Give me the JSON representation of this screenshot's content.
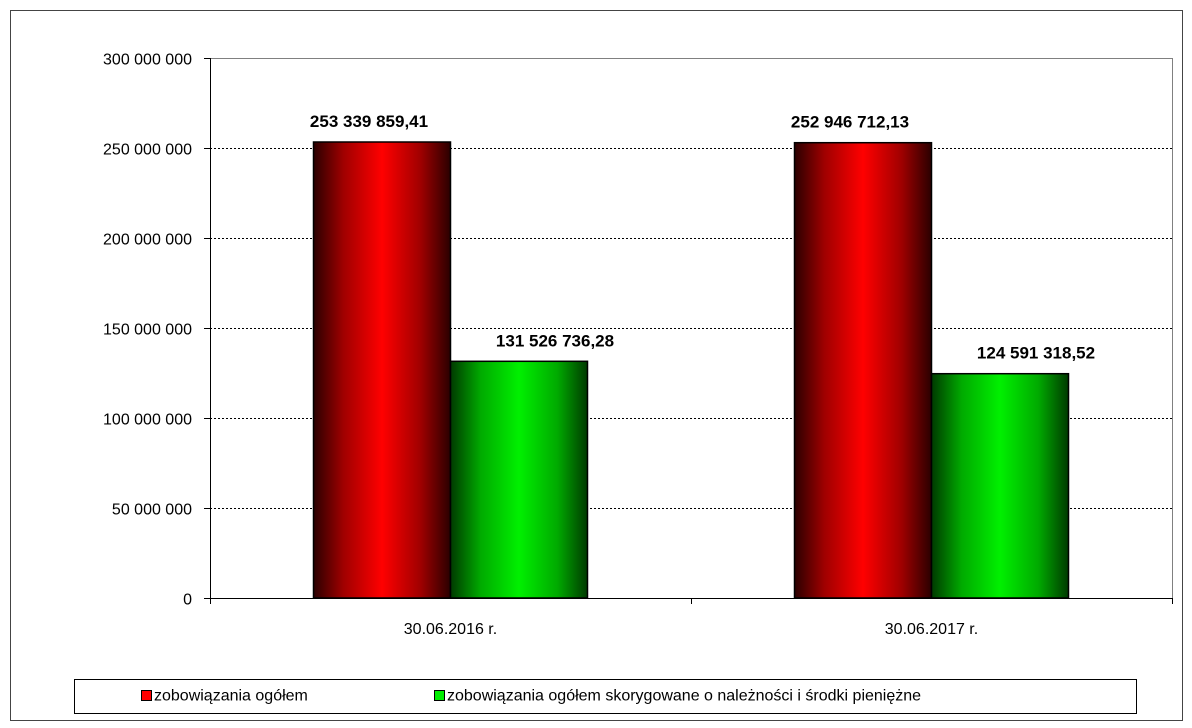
{
  "chart_data": {
    "type": "bar",
    "categories": [
      "30.06.2016 r.",
      "30.06.2017 r."
    ],
    "series": [
      {
        "name": "zobowiązania ogółem",
        "color": "#ff0000",
        "values": [
          253339859.41,
          252946712.13
        ],
        "labels": [
          "253 339 859,41",
          "252 946 712,13"
        ]
      },
      {
        "name": "zobowiązania ogółem skorygowane o należności i środki pieniężne",
        "color": "#00ee00",
        "values": [
          131526736.28,
          124591318.52
        ],
        "labels": [
          "131 526 736,28",
          "124 591 318,52"
        ]
      }
    ],
    "ylim": [
      0,
      300000000
    ],
    "yticks": [
      0,
      50000000,
      100000000,
      150000000,
      200000000,
      250000000,
      300000000
    ],
    "ytick_labels": [
      "0",
      "50 000 000",
      "100 000 000",
      "150 000 000",
      "200 000 000",
      "250 000 000",
      "300 000 000"
    ],
    "grid": true,
    "legend_position": "bottom"
  }
}
